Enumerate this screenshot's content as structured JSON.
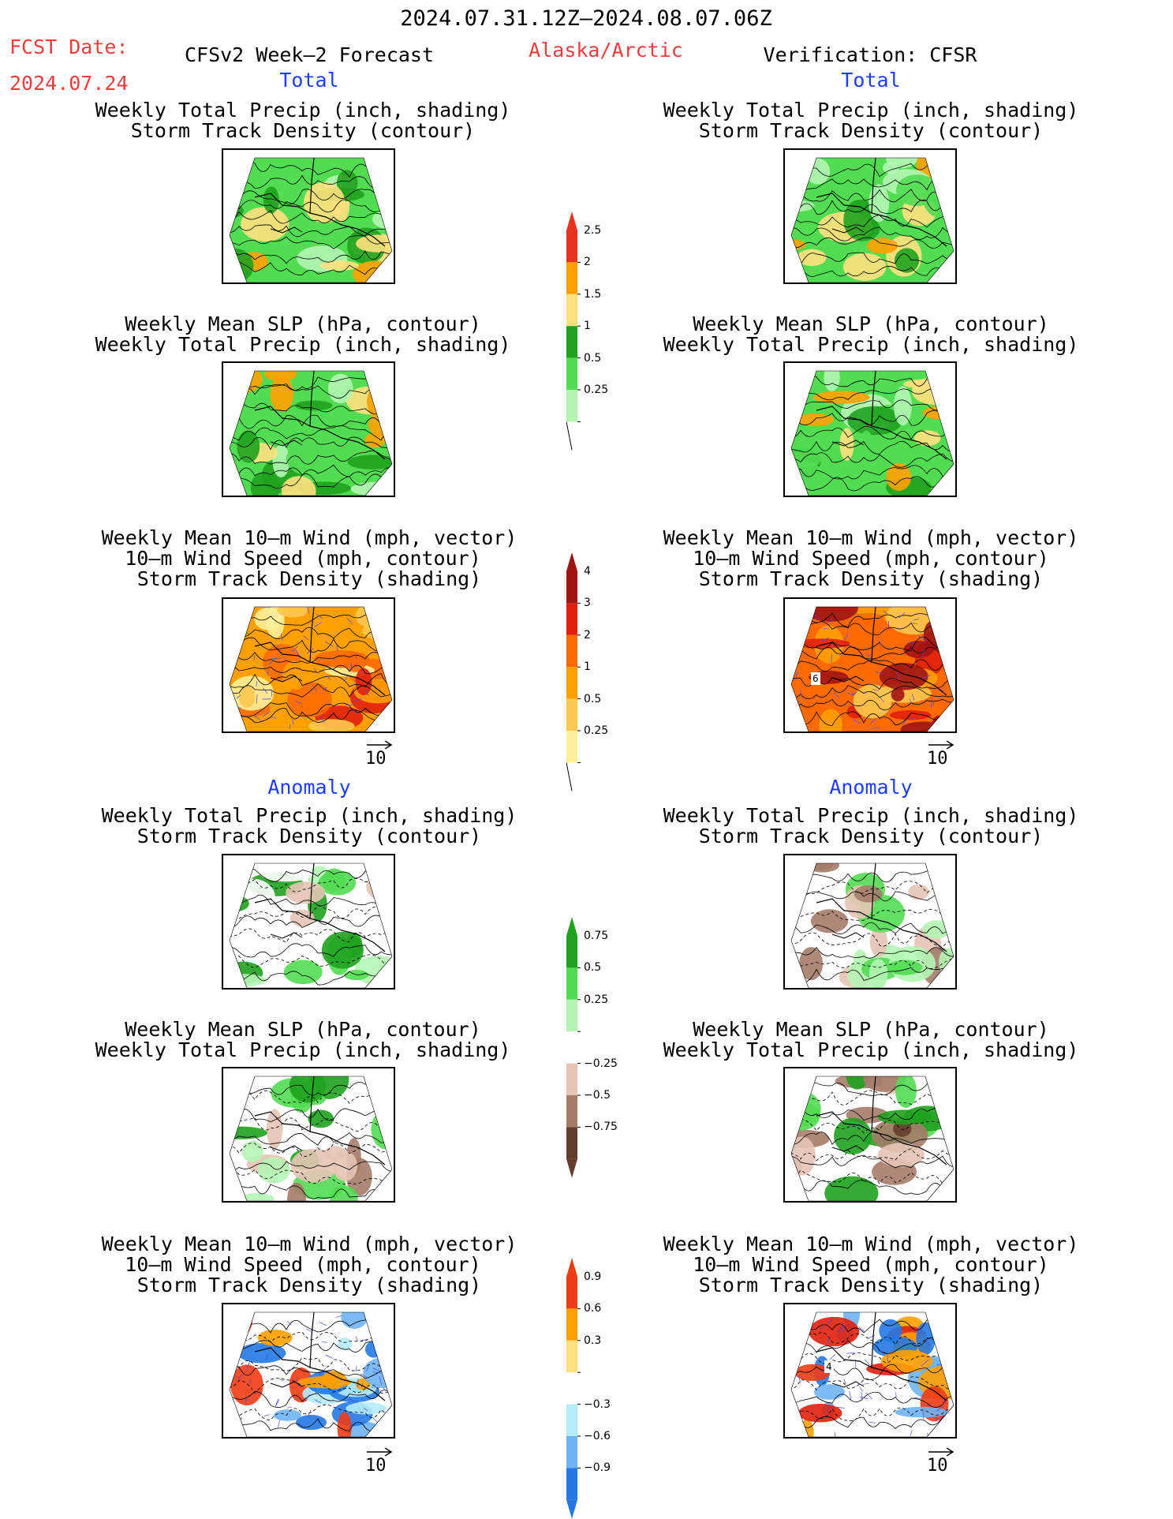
{
  "header": {
    "period": "2024.07.31.12Z–2024.08.07.06Z",
    "fcst_date_label": "FCST Date:",
    "fcst_date": "2024.07.24",
    "forecast": "CFSv2 Week–2 Forecast",
    "region": "Alaska/Arctic",
    "verification": "Verification: CFSR"
  },
  "sections": {
    "total": "Total",
    "anomaly": "Anomaly"
  },
  "titles": {
    "precip_storm": [
      "Weekly Total Precip (inch, shading)",
      "Storm Track Density (contour)"
    ],
    "slp_precip": [
      "Weekly Mean SLP (hPa, contour)",
      "Weekly Total Precip (inch, shading)"
    ],
    "wind": [
      "Weekly Mean 10–m Wind (mph, vector)",
      "10–m Wind Speed (mph, contour)",
      "Storm Track Density (shading)"
    ]
  },
  "vector_ref": "10",
  "panel_labels": {
    "total_wind_right": "6",
    "anom_wind_right": "4"
  },
  "colorbars": {
    "precip_total": {
      "labels": [
        "2.5",
        "2",
        "1.5",
        "1",
        "0.5",
        "0.25"
      ],
      "colors": [
        "#e8321e",
        "#ffa000",
        "#ffe080",
        "#1fa21f",
        "#52dc52",
        "#b4f5b4"
      ]
    },
    "storm_total": {
      "labels": [
        "4",
        "3",
        "2",
        "1",
        "0.5",
        "0.25"
      ],
      "colors": [
        "#a01414",
        "#e0200c",
        "#ff6a00",
        "#ffa000",
        "#ffc850",
        "#fff09a"
      ]
    },
    "precip_anom": {
      "labels": [
        "0.75",
        "0.5",
        "0.25",
        "−0.25",
        "−0.5",
        "−0.75"
      ],
      "colors": [
        "#1fa21f",
        "#52dc52",
        "#b4f5b4",
        "#ffffff",
        "#e6c4b6",
        "#a57c6a",
        "#643c2e"
      ]
    },
    "storm_anom": {
      "labels": [
        "0.9",
        "0.6",
        "0.3",
        "−0.3",
        "−0.6",
        "−0.9"
      ],
      "colors": [
        "#f03c14",
        "#ffa000",
        "#ffe080",
        "#ffffff",
        "#b4ecfa",
        "#6eb4f5",
        "#2478e6"
      ]
    }
  },
  "colors": {
    "title_red": "#f03c3c",
    "section_blue": "#1e3cff"
  }
}
